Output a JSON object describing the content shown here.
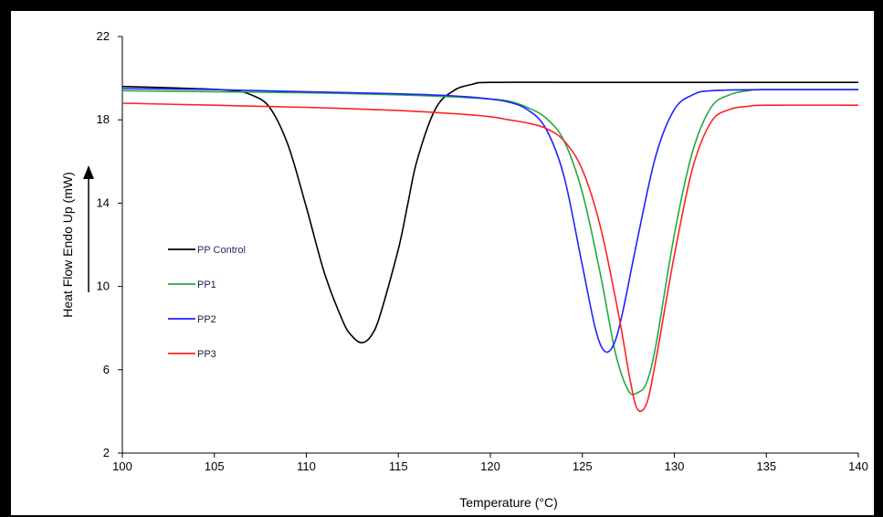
{
  "chart_data": {
    "type": "line",
    "title": "",
    "xlabel": "Temperature (°C)",
    "ylabel": "Heat Flow Endo Up (mW)",
    "xlim": [
      100,
      140
    ],
    "ylim": [
      2,
      22
    ],
    "xticks": [
      "100",
      "105",
      "110",
      "115",
      "120",
      "125",
      "130",
      "135",
      "140"
    ],
    "yticks": [
      "2",
      "6",
      "10",
      "14",
      "18",
      "22"
    ],
    "grid": false,
    "legend_position": "left-middle",
    "series": [
      {
        "name": "PP Control",
        "color": "#000000",
        "points": [
          [
            100,
            19.6
          ],
          [
            104,
            19.5
          ],
          [
            106,
            19.4
          ],
          [
            107,
            19.2
          ],
          [
            108,
            18.6
          ],
          [
            109,
            16.8
          ],
          [
            110,
            13.8
          ],
          [
            111,
            10.6
          ],
          [
            112,
            8.3
          ],
          [
            112.5,
            7.6
          ],
          [
            113,
            7.3
          ],
          [
            113.5,
            7.6
          ],
          [
            114,
            8.6
          ],
          [
            115,
            11.8
          ],
          [
            115.5,
            13.9
          ],
          [
            116,
            16.0
          ],
          [
            117,
            18.5
          ],
          [
            118,
            19.4
          ],
          [
            119,
            19.7
          ],
          [
            120,
            19.8
          ],
          [
            125,
            19.8
          ],
          [
            130,
            19.8
          ],
          [
            140,
            19.8
          ]
        ]
      },
      {
        "name": "PP1",
        "color": "#22aa44",
        "points": [
          [
            100,
            19.4
          ],
          [
            105,
            19.35
          ],
          [
            110,
            19.3
          ],
          [
            115,
            19.2
          ],
          [
            118,
            19.1
          ],
          [
            120,
            19.0
          ],
          [
            121,
            18.9
          ],
          [
            122,
            18.6
          ],
          [
            123,
            18.1
          ],
          [
            124,
            17.0
          ],
          [
            125,
            14.5
          ],
          [
            126,
            10.5
          ],
          [
            126.8,
            6.8
          ],
          [
            127.5,
            5.0
          ],
          [
            128,
            4.9
          ],
          [
            128.5,
            5.4
          ],
          [
            129,
            7.2
          ],
          [
            130,
            12.5
          ],
          [
            131,
            16.5
          ],
          [
            132,
            18.6
          ],
          [
            133,
            19.2
          ],
          [
            134,
            19.4
          ],
          [
            135,
            19.45
          ],
          [
            140,
            19.45
          ]
        ]
      },
      {
        "name": "PP2",
        "color": "#2222ff",
        "points": [
          [
            100,
            19.5
          ],
          [
            105,
            19.45
          ],
          [
            110,
            19.35
          ],
          [
            115,
            19.25
          ],
          [
            118,
            19.15
          ],
          [
            120,
            19.0
          ],
          [
            121,
            18.85
          ],
          [
            122,
            18.5
          ],
          [
            123,
            17.6
          ],
          [
            124,
            15.3
          ],
          [
            125,
            11.0
          ],
          [
            125.7,
            8.0
          ],
          [
            126.2,
            6.9
          ],
          [
            126.7,
            7.2
          ],
          [
            127.2,
            8.8
          ],
          [
            128,
            12.3
          ],
          [
            129,
            16.3
          ],
          [
            130,
            18.5
          ],
          [
            131,
            19.2
          ],
          [
            132,
            19.4
          ],
          [
            135,
            19.45
          ],
          [
            140,
            19.45
          ]
        ]
      },
      {
        "name": "PP3",
        "color": "#ff2222",
        "points": [
          [
            100,
            18.8
          ],
          [
            105,
            18.7
          ],
          [
            110,
            18.6
          ],
          [
            115,
            18.45
          ],
          [
            118,
            18.3
          ],
          [
            120,
            18.15
          ],
          [
            121,
            18.0
          ],
          [
            122,
            17.85
          ],
          [
            123,
            17.6
          ],
          [
            124,
            17.0
          ],
          [
            125,
            15.6
          ],
          [
            126,
            12.8
          ],
          [
            127,
            8.5
          ],
          [
            127.6,
            5.5
          ],
          [
            128,
            4.1
          ],
          [
            128.5,
            4.4
          ],
          [
            129,
            6.5
          ],
          [
            130,
            11.5
          ],
          [
            131,
            15.7
          ],
          [
            132,
            17.9
          ],
          [
            133,
            18.5
          ],
          [
            134,
            18.65
          ],
          [
            135,
            18.7
          ],
          [
            140,
            18.7
          ]
        ]
      }
    ]
  }
}
